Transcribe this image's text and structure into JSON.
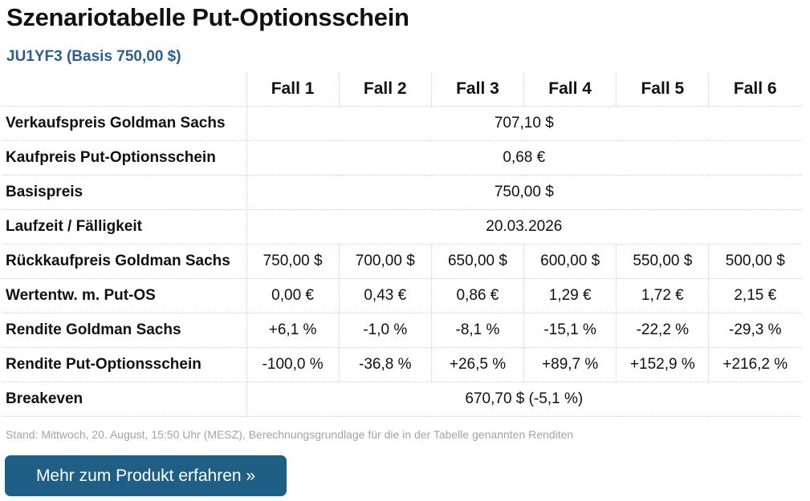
{
  "title": "Szenariotabelle Put-Optionsschein",
  "subtitle": "JU1YF3 (Basis 750,00 $)",
  "table": {
    "headers": [
      "Fall 1",
      "Fall 2",
      "Fall 3",
      "Fall 4",
      "Fall 5",
      "Fall 6"
    ],
    "merged_rows": {
      "verkaufspreis": {
        "label": "Verkaufspreis Goldman Sachs",
        "value": "707,10 $"
      },
      "kaufpreis": {
        "label": "Kaufpreis Put-Optionsschein",
        "value": "0,68 €"
      },
      "basispreis": {
        "label": "Basispreis",
        "value": "750,00 $"
      },
      "laufzeit": {
        "label": "Laufzeit / Fälligkeit",
        "value": "20.03.2026"
      },
      "breakeven": {
        "label": "Breakeven",
        "value": "670,70 $ (-5,1 %)"
      }
    },
    "case_rows": {
      "rueckkauf": {
        "label": "Rückkaufpreis Goldman Sachs",
        "values": [
          "750,00 $",
          "700,00 $",
          "650,00 $",
          "600,00 $",
          "550,00 $",
          "500,00 $"
        ]
      },
      "wertentw": {
        "label": "Wertentw. m. Put-OS",
        "values": [
          "0,00 €",
          "0,43 €",
          "0,86 €",
          "1,29 €",
          "1,72 €",
          "2,15 €"
        ]
      },
      "rendite_gs": {
        "label": "Rendite Goldman Sachs",
        "values": [
          "+6,1 %",
          "-1,0 %",
          "-8,1 %",
          "-15,1 %",
          "-22,2 %",
          "-29,3 %"
        ]
      },
      "rendite_os": {
        "label": "Rendite Put-Optionsschein",
        "values": [
          "-100,0 %",
          "-36,8 %",
          "+26,5 %",
          "+89,7 %",
          "+152,9 %",
          "+216,2 %"
        ]
      }
    }
  },
  "footnote": "Stand: Mittwoch, 20. August, 15:50 Uhr (MESZ), Berechnungsgrundlage für die in der Tabelle genannten Renditen",
  "cta": {
    "label": "Mehr zum Produkt erfahren »"
  },
  "colors": {
    "accent": "#2c5e8f",
    "button": "#1f5f86"
  }
}
